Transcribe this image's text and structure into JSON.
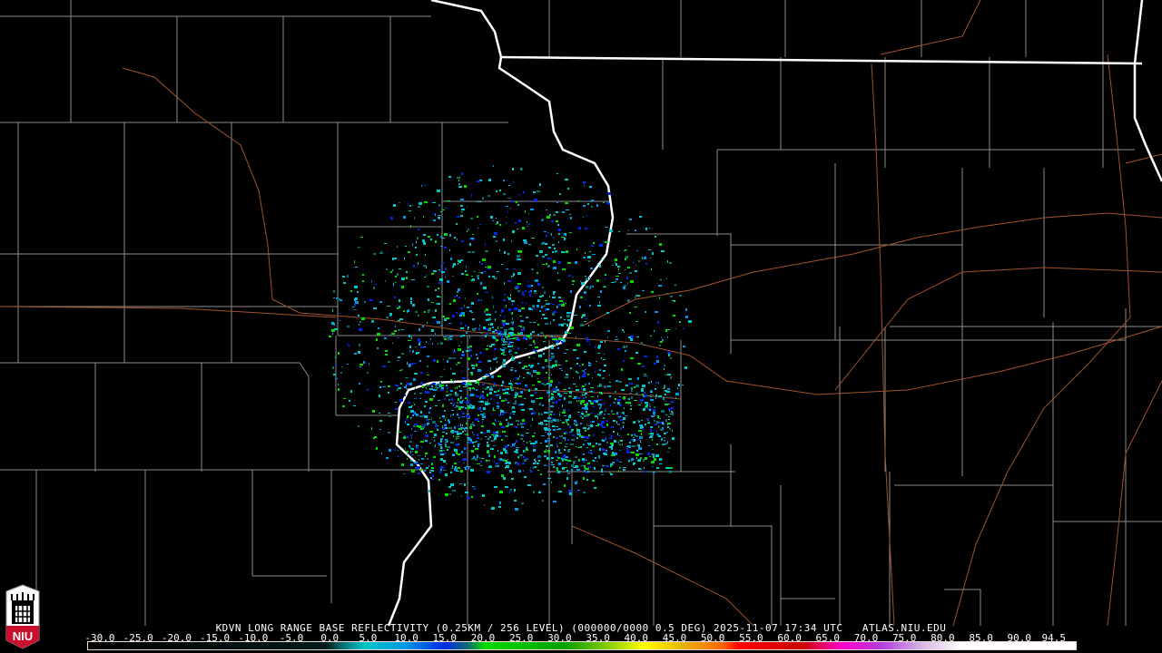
{
  "product": {
    "title": "KDVN LONG RANGE BASE REFLECTIVITY (0.25KM / 256 LEVEL) (000000/0000 0.5 DEG) 2025-11-07 17:34 UTC   ATLAS.NIU.EDU",
    "logo_text": "NIU"
  },
  "colorbar": {
    "labels": [
      "-30.0",
      "-25.0",
      "-20.0",
      "-15.0",
      "-10.0",
      "-5.0",
      "0.0",
      "5.0",
      "10.0",
      "15.0",
      "20.0",
      "25.0",
      "30.0",
      "35.0",
      "40.0",
      "45.0",
      "50.0",
      "55.0",
      "60.0",
      "65.0",
      "70.0",
      "75.0",
      "80.0",
      "85.0",
      "90.0",
      "94.5"
    ],
    "stops": [
      {
        "value": -30,
        "color": "#000000"
      },
      {
        "value": 0,
        "color": "#001a1a"
      },
      {
        "value": 2,
        "color": "#0a6e6e"
      },
      {
        "value": 5,
        "color": "#00c8c8"
      },
      {
        "value": 10,
        "color": "#0096e6"
      },
      {
        "value": 15,
        "color": "#0028e6"
      },
      {
        "value": 18,
        "color": "#0a6e6e"
      },
      {
        "value": 20,
        "color": "#00dc00"
      },
      {
        "value": 30,
        "color": "#00a000"
      },
      {
        "value": 35,
        "color": "#78c800"
      },
      {
        "value": 40,
        "color": "#ffff00"
      },
      {
        "value": 45,
        "color": "#e6b400"
      },
      {
        "value": 50,
        "color": "#ff6400"
      },
      {
        "value": 52,
        "color": "#ff0000"
      },
      {
        "value": 60,
        "color": "#c80000"
      },
      {
        "value": 65,
        "color": "#ff00c8"
      },
      {
        "value": 70,
        "color": "#b43cdc"
      },
      {
        "value": 75,
        "color": "#d2b4e6"
      },
      {
        "value": 80,
        "color": "#ffffff"
      },
      {
        "value": 94.5,
        "color": "#ffffff"
      }
    ]
  },
  "colors": {
    "county": "#8c8c8c",
    "state": "#ffffff",
    "highway": "#a0522d",
    "echo_low": "#00c8c8",
    "echo_mid": "#0096e6",
    "echo_high": "#00dc00"
  }
}
